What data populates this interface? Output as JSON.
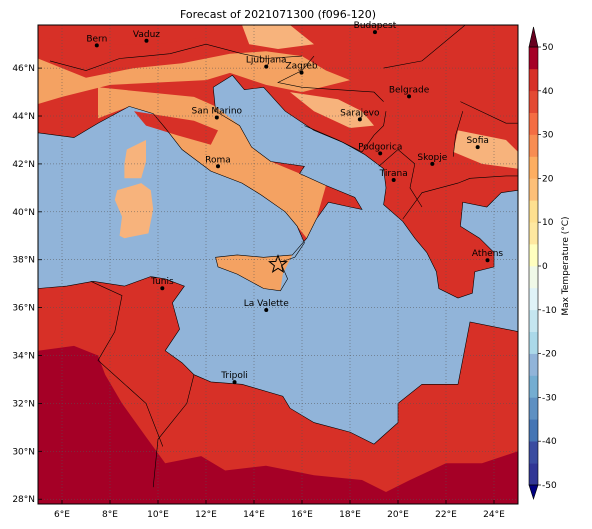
{
  "title": "Forecast of 2021071300 (f096-120)",
  "colors": {
    "sea": "#91b4d9",
    "land_20_30": "#f4a262",
    "land_30_40": "#d73027",
    "land_40_50": "#a50026",
    "land_light": "#f7b37c",
    "border": "#000000"
  },
  "map": {
    "lon_range": [
      5,
      25
    ],
    "lat_range": [
      27.8,
      47.8
    ],
    "lon_ticks": [
      {
        "v": 6,
        "label": "6°E"
      },
      {
        "v": 8,
        "label": "8°E"
      },
      {
        "v": 10,
        "label": "10°E"
      },
      {
        "v": 12,
        "label": "12°E"
      },
      {
        "v": 14,
        "label": "14°E"
      },
      {
        "v": 16,
        "label": "16°E"
      },
      {
        "v": 18,
        "label": "18°E"
      },
      {
        "v": 20,
        "label": "20°E"
      },
      {
        "v": 22,
        "label": "22°E"
      },
      {
        "v": 24,
        "label": "24°E"
      }
    ],
    "lat_ticks": [
      {
        "v": 28,
        "label": "28°N"
      },
      {
        "v": 30,
        "label": "30°N"
      },
      {
        "v": 32,
        "label": "32°N"
      },
      {
        "v": 34,
        "label": "34°N"
      },
      {
        "v": 36,
        "label": "36°N"
      },
      {
        "v": 38,
        "label": "38°N"
      },
      {
        "v": 40,
        "label": "40°N"
      },
      {
        "v": 42,
        "label": "42°N"
      },
      {
        "v": 44,
        "label": "44°N"
      },
      {
        "v": 46,
        "label": "46°N"
      }
    ],
    "grid": true,
    "marker": {
      "type": "star",
      "lon": 15.0,
      "lat": 37.8
    }
  },
  "cities": [
    {
      "name": "Bern",
      "lon": 7.45,
      "lat": 46.95
    },
    {
      "name": "Vaduz",
      "lon": 9.52,
      "lat": 47.14
    },
    {
      "name": "Budapest",
      "lon": 19.04,
      "lat": 47.5
    },
    {
      "name": "Ljubljana",
      "lon": 14.51,
      "lat": 46.06
    },
    {
      "name": "Zagreb",
      "lon": 15.98,
      "lat": 45.81
    },
    {
      "name": "Belgrade",
      "lon": 20.46,
      "lat": 44.82
    },
    {
      "name": "San Marino",
      "lon": 12.45,
      "lat": 43.94
    },
    {
      "name": "Sarajevo",
      "lon": 18.41,
      "lat": 43.86
    },
    {
      "name": "Sofia",
      "lon": 23.32,
      "lat": 42.7
    },
    {
      "name": "Podgorica",
      "lon": 19.26,
      "lat": 42.44
    },
    {
      "name": "Skopje",
      "lon": 21.43,
      "lat": 42.0
    },
    {
      "name": "Roma",
      "lon": 12.5,
      "lat": 41.9
    },
    {
      "name": "Tirana",
      "lon": 19.82,
      "lat": 41.33
    },
    {
      "name": "Athens",
      "lon": 23.73,
      "lat": 37.98
    },
    {
      "name": "Tunis",
      "lon": 10.18,
      "lat": 36.81
    },
    {
      "name": "La Valette",
      "lon": 14.51,
      "lat": 35.9
    },
    {
      "name": "Tripoli",
      "lon": 13.19,
      "lat": 32.89
    }
  ],
  "colorbar": {
    "label": "Max Temperature (°C)",
    "ticks": [
      -50,
      -40,
      -30,
      -20,
      -10,
      0,
      10,
      20,
      30,
      40,
      50
    ],
    "levels": [
      -50,
      -45,
      -40,
      -35,
      -30,
      -25,
      -20,
      -15,
      -10,
      -5,
      0,
      5,
      10,
      15,
      20,
      25,
      30,
      35,
      40,
      45,
      50
    ],
    "colors": [
      "#313695",
      "#3a4ca0",
      "#4575b4",
      "#5e90c2",
      "#74add1",
      "#91b4d9",
      "#abd9e9",
      "#c5e6f0",
      "#e0f3f8",
      "#f0f9e8",
      "#ffffbf",
      "#fee8a0",
      "#fee090",
      "#fdbf78",
      "#fdae61",
      "#f88d52",
      "#f46d43",
      "#e34a33",
      "#d73027",
      "#a50026"
    ],
    "extend_colors": {
      "low": "#000080",
      "high": "#67001f"
    }
  }
}
